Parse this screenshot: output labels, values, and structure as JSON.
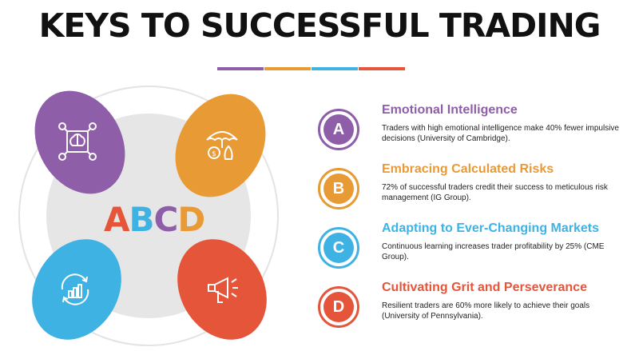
{
  "header": {
    "title": "KEYS TO SUCCESSFUL TRADING",
    "divider_colors": [
      "#8e5ea8",
      "#e89a35",
      "#3fb2e4",
      "#e5553a"
    ]
  },
  "center": {
    "letters": [
      {
        "char": "A",
        "color": "#e5553a"
      },
      {
        "char": "B",
        "color": "#3fb2e4"
      },
      {
        "char": "C",
        "color": "#8e5ea8"
      },
      {
        "char": "D",
        "color": "#e89a35"
      }
    ]
  },
  "blobs": [
    {
      "name": "emotional-intelligence",
      "color": "#8e5ea8",
      "icon": "brain-network-icon"
    },
    {
      "name": "calculated-risks",
      "color": "#e89a35",
      "icon": "umbrella-money-icon"
    },
    {
      "name": "changing-markets",
      "color": "#3fb2e4",
      "icon": "growth-cycle-icon"
    },
    {
      "name": "grit-perseverance",
      "color": "#e5553a",
      "icon": "megaphone-icon"
    }
  ],
  "items": [
    {
      "letter": "A",
      "color": "#8e5ea8",
      "title": "Emotional Intelligence",
      "text": "Traders with high emotional intelligence make 40% fewer impulsive decisions (University of Cambridge)."
    },
    {
      "letter": "B",
      "color": "#e89a35",
      "title": "Embracing Calculated Risks",
      "text": "72% of successful traders credit their success to meticulous risk management (IG Group)."
    },
    {
      "letter": "C",
      "color": "#3fb2e4",
      "title": "Adapting to Ever-Changing Markets",
      "text": "Continuous learning increases trader profitability by 25% (CME Group)."
    },
    {
      "letter": "D",
      "color": "#e5553a",
      "title": "Cultivating Grit and Perseverance",
      "text": "Resilient traders are 60% more likely to achieve their goals (University of Pennsylvania)."
    }
  ]
}
